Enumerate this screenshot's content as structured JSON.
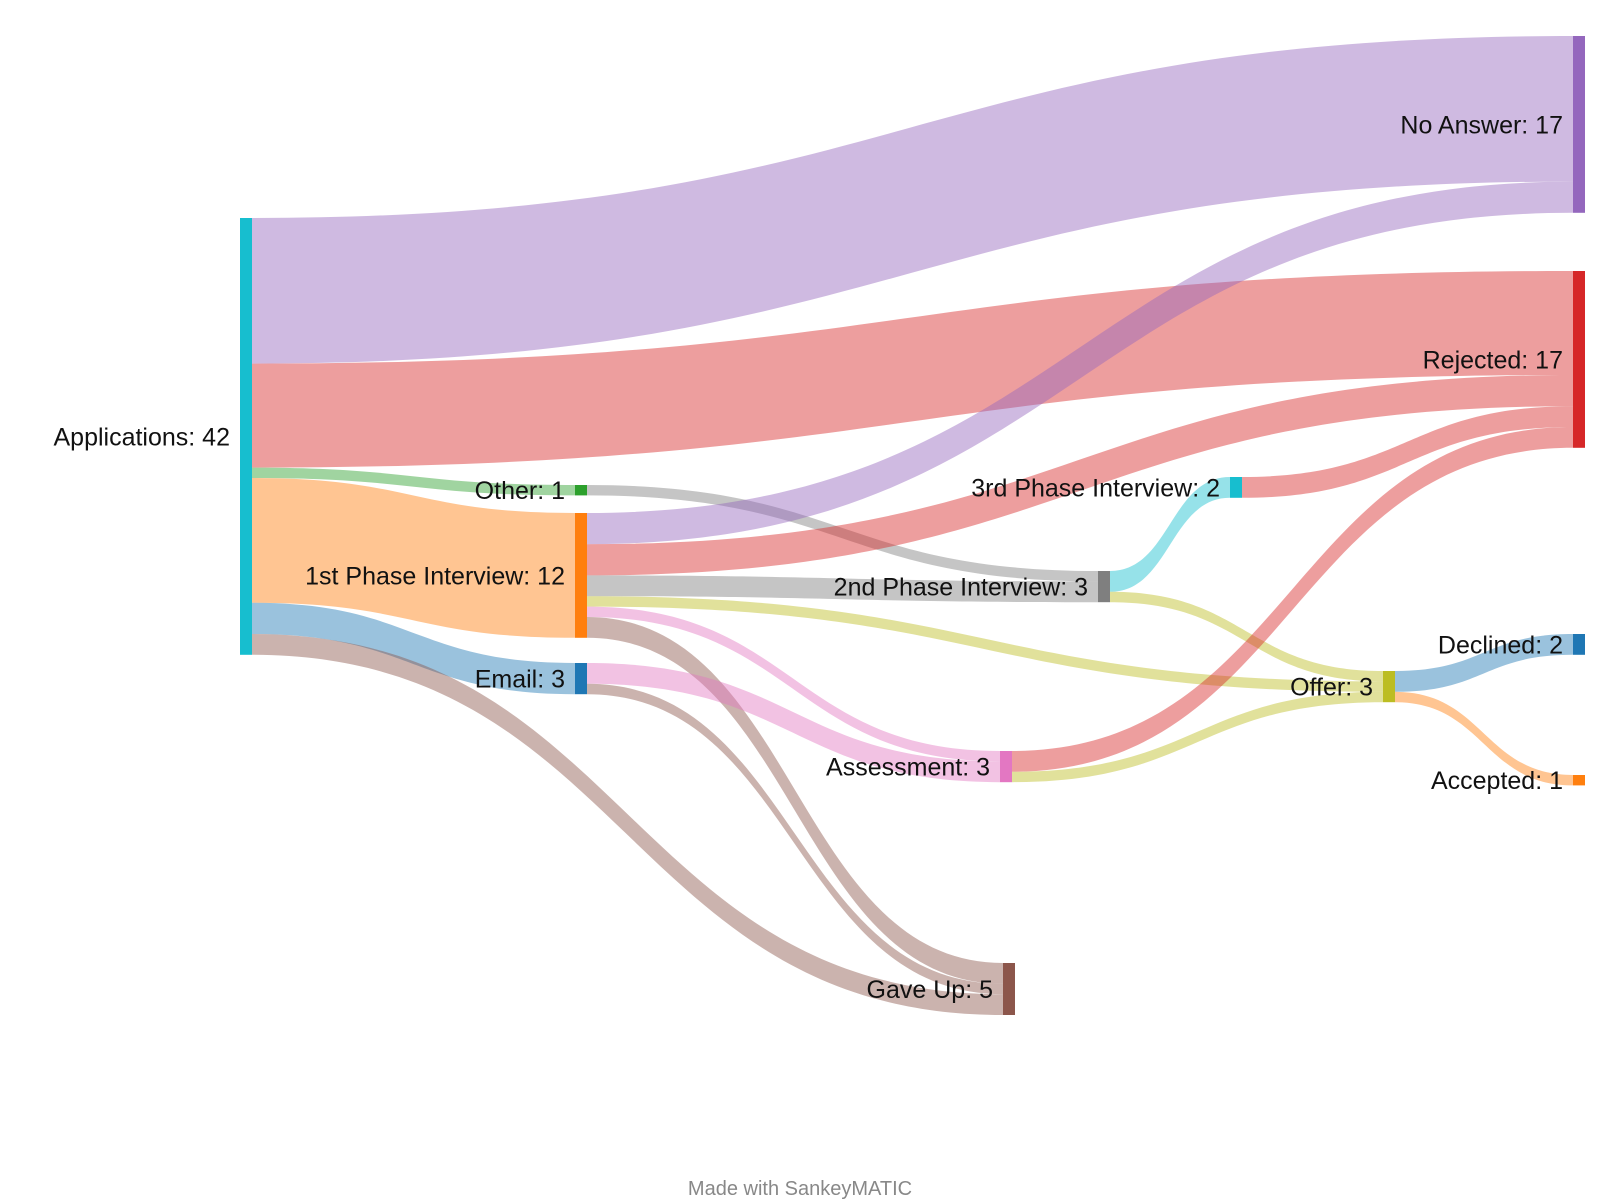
{
  "credit": "Made with SankeyMATIC",
  "chart_data": {
    "type": "sankey",
    "nodes": [
      {
        "id": "applications",
        "label": "Applications: 42",
        "value": 42,
        "color": "#17becf"
      },
      {
        "id": "other",
        "label": "Other: 1",
        "value": 1,
        "color": "#2ca02c"
      },
      {
        "id": "first",
        "label": "1st Phase Interview: 12",
        "value": 12,
        "color": "#ff7f0e"
      },
      {
        "id": "email",
        "label": "Email: 3",
        "value": 3,
        "color": "#1f77b4"
      },
      {
        "id": "second",
        "label": "2nd Phase Interview: 3",
        "value": 3,
        "color": "#7f7f7f"
      },
      {
        "id": "third",
        "label": "3rd Phase Interview: 2",
        "value": 2,
        "color": "#17becf"
      },
      {
        "id": "assessment",
        "label": "Assessment: 3",
        "value": 3,
        "color": "#e377c2"
      },
      {
        "id": "gaveup",
        "label": "Gave Up: 5",
        "value": 5,
        "color": "#8c564b"
      },
      {
        "id": "offer",
        "label": "Offer: 3",
        "value": 3,
        "color": "#bcbd22"
      },
      {
        "id": "noanswer",
        "label": "No Answer: 17",
        "value": 17,
        "color": "#9467bd"
      },
      {
        "id": "rejected",
        "label": "Rejected: 17",
        "value": 17,
        "color": "#d62728"
      },
      {
        "id": "declined",
        "label": "Declined: 2",
        "value": 2,
        "color": "#1f77b4"
      },
      {
        "id": "accepted",
        "label": "Accepted: 1",
        "value": 1,
        "color": "#ff7f0e"
      }
    ],
    "flows": [
      {
        "from": "applications",
        "to": "noanswer",
        "value": 14
      },
      {
        "from": "applications",
        "to": "rejected",
        "value": 10
      },
      {
        "from": "applications",
        "to": "other",
        "value": 1
      },
      {
        "from": "applications",
        "to": "first",
        "value": 12
      },
      {
        "from": "applications",
        "to": "email",
        "value": 3
      },
      {
        "from": "applications",
        "to": "gaveup",
        "value": 2
      },
      {
        "from": "other",
        "to": "second",
        "value": 1
      },
      {
        "from": "first",
        "to": "noanswer",
        "value": 3
      },
      {
        "from": "first",
        "to": "rejected",
        "value": 3
      },
      {
        "from": "first",
        "to": "second",
        "value": 2
      },
      {
        "from": "first",
        "to": "offer",
        "value": 1
      },
      {
        "from": "first",
        "to": "assessment",
        "value": 1
      },
      {
        "from": "first",
        "to": "gaveup",
        "value": 2
      },
      {
        "from": "email",
        "to": "assessment",
        "value": 2
      },
      {
        "from": "email",
        "to": "gaveup",
        "value": 1
      },
      {
        "from": "second",
        "to": "third",
        "value": 2
      },
      {
        "from": "second",
        "to": "offer",
        "value": 1
      },
      {
        "from": "third",
        "to": "rejected",
        "value": 2
      },
      {
        "from": "assessment",
        "to": "rejected",
        "value": 2
      },
      {
        "from": "assessment",
        "to": "offer",
        "value": 1
      },
      {
        "from": "offer",
        "to": "declined",
        "value": 2
      },
      {
        "from": "offer",
        "to": "accepted",
        "value": 1
      }
    ]
  }
}
